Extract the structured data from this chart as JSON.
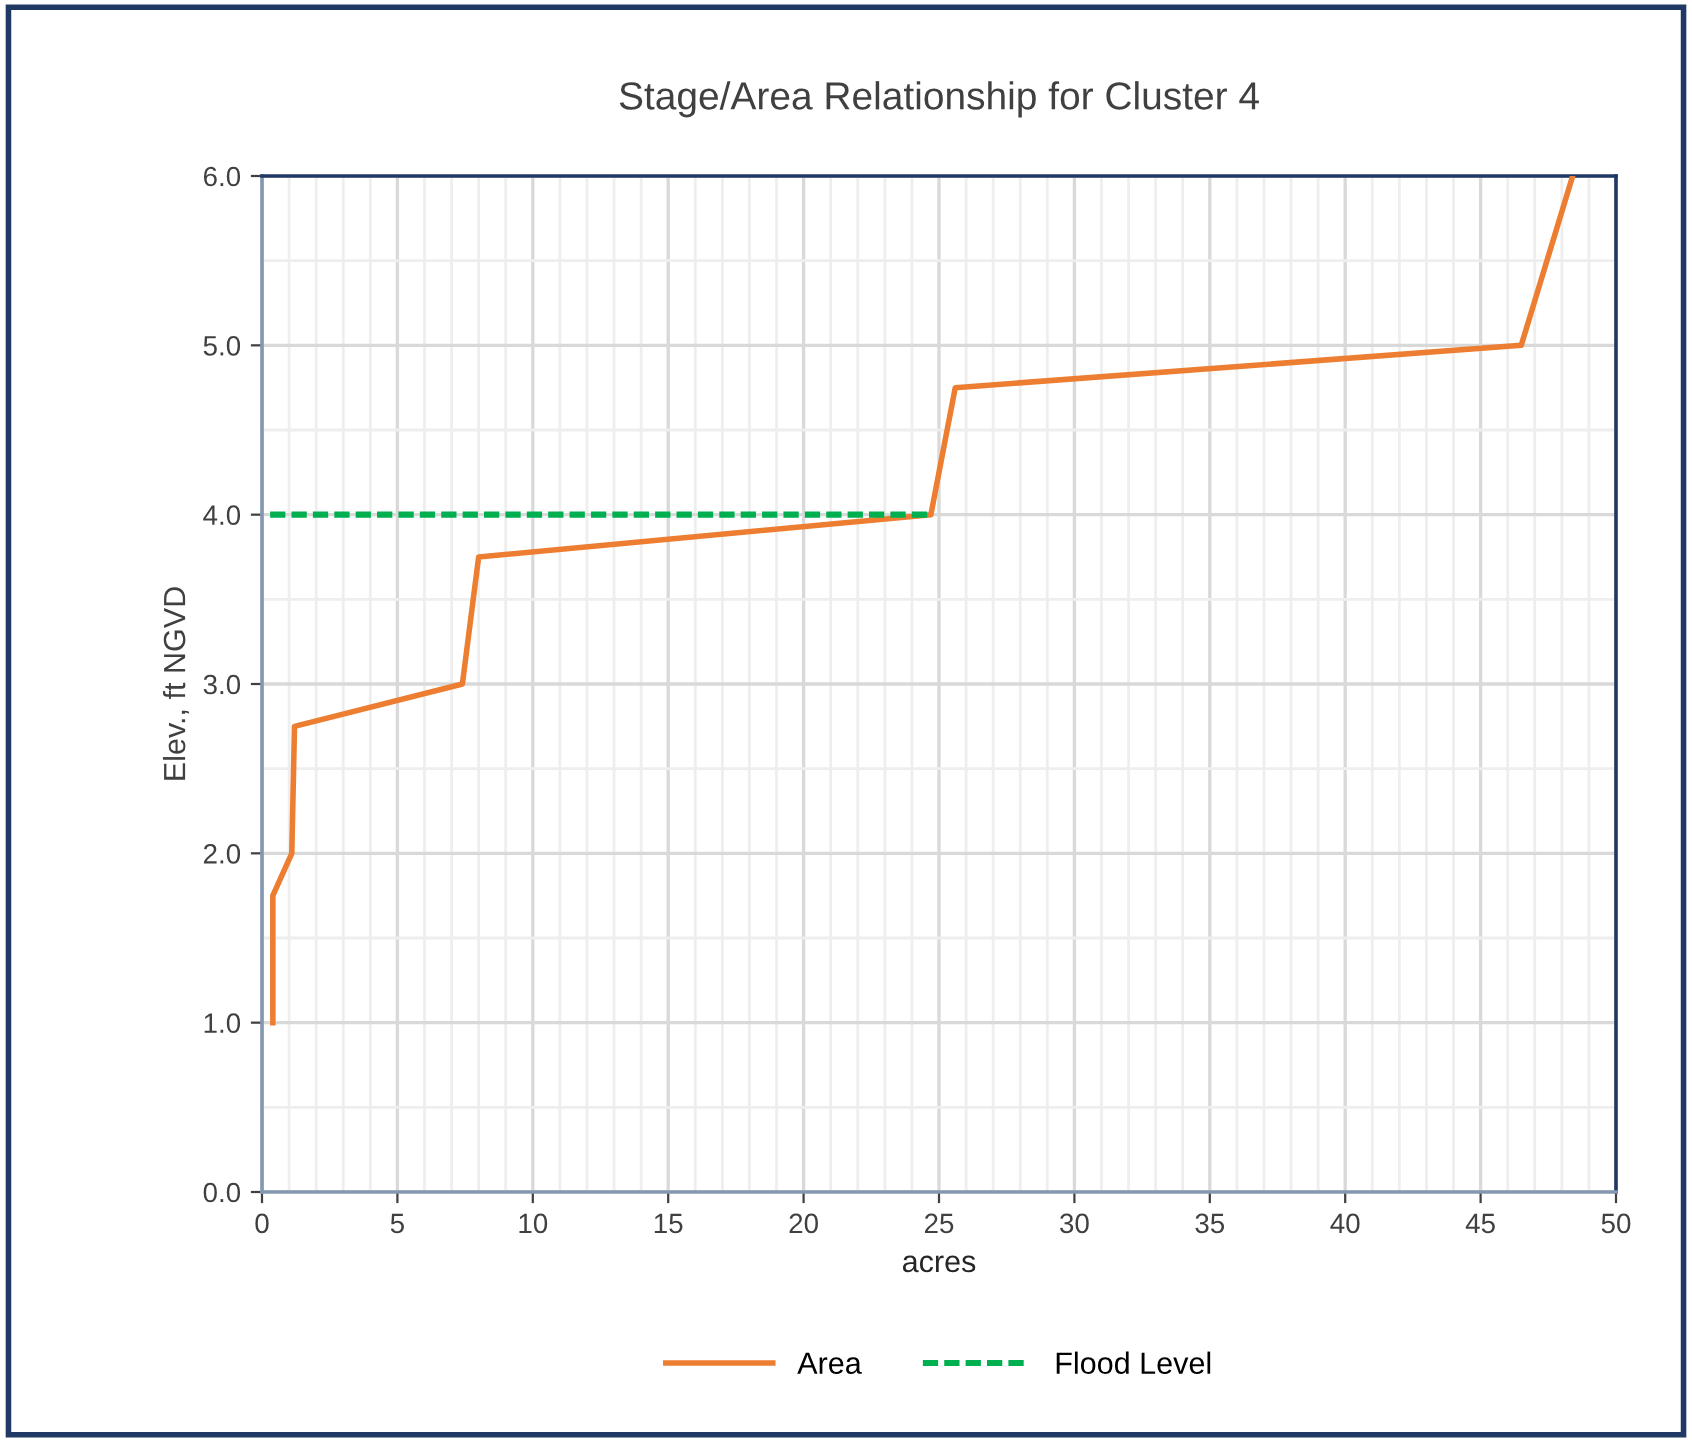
{
  "chart_data": {
    "type": "line",
    "title": "Stage/Area Relationship for Cluster 4",
    "xlabel": "acres",
    "ylabel": "Elev., ft NGVD",
    "xlim": [
      0,
      50
    ],
    "xticks": [
      0,
      5,
      10,
      15,
      20,
      25,
      30,
      35,
      40,
      45,
      50
    ],
    "ylim": [
      0,
      6
    ],
    "yticks": [
      {
        "value": 0,
        "label": "0.0"
      },
      {
        "value": 1,
        "label": "1.0"
      },
      {
        "value": 2,
        "label": "2.0"
      },
      {
        "value": 3,
        "label": "3.0"
      },
      {
        "value": 4,
        "label": "4.0"
      },
      {
        "value": 5,
        "label": "5.0"
      },
      {
        "value": 6,
        "label": "6.0"
      }
    ],
    "grid": true,
    "legend": "bottom",
    "series": [
      {
        "name": "Area",
        "color": "#ed7d31",
        "line_style": "solid",
        "x": [
          0.4,
          0.4,
          1.1,
          1.2,
          7.4,
          8.0,
          24.7,
          25.0,
          25.6,
          46.5,
          48.4
        ],
        "values": [
          1.0,
          1.75,
          2.0,
          2.75,
          3.0,
          3.75,
          4.0,
          4.25,
          4.75,
          5.0,
          6.0
        ]
      },
      {
        "name": "Flood Level",
        "color": "#00b050",
        "line_style": "dashed",
        "x": [
          0.3,
          24.7
        ],
        "values": [
          4.0,
          4.0
        ]
      }
    ]
  }
}
